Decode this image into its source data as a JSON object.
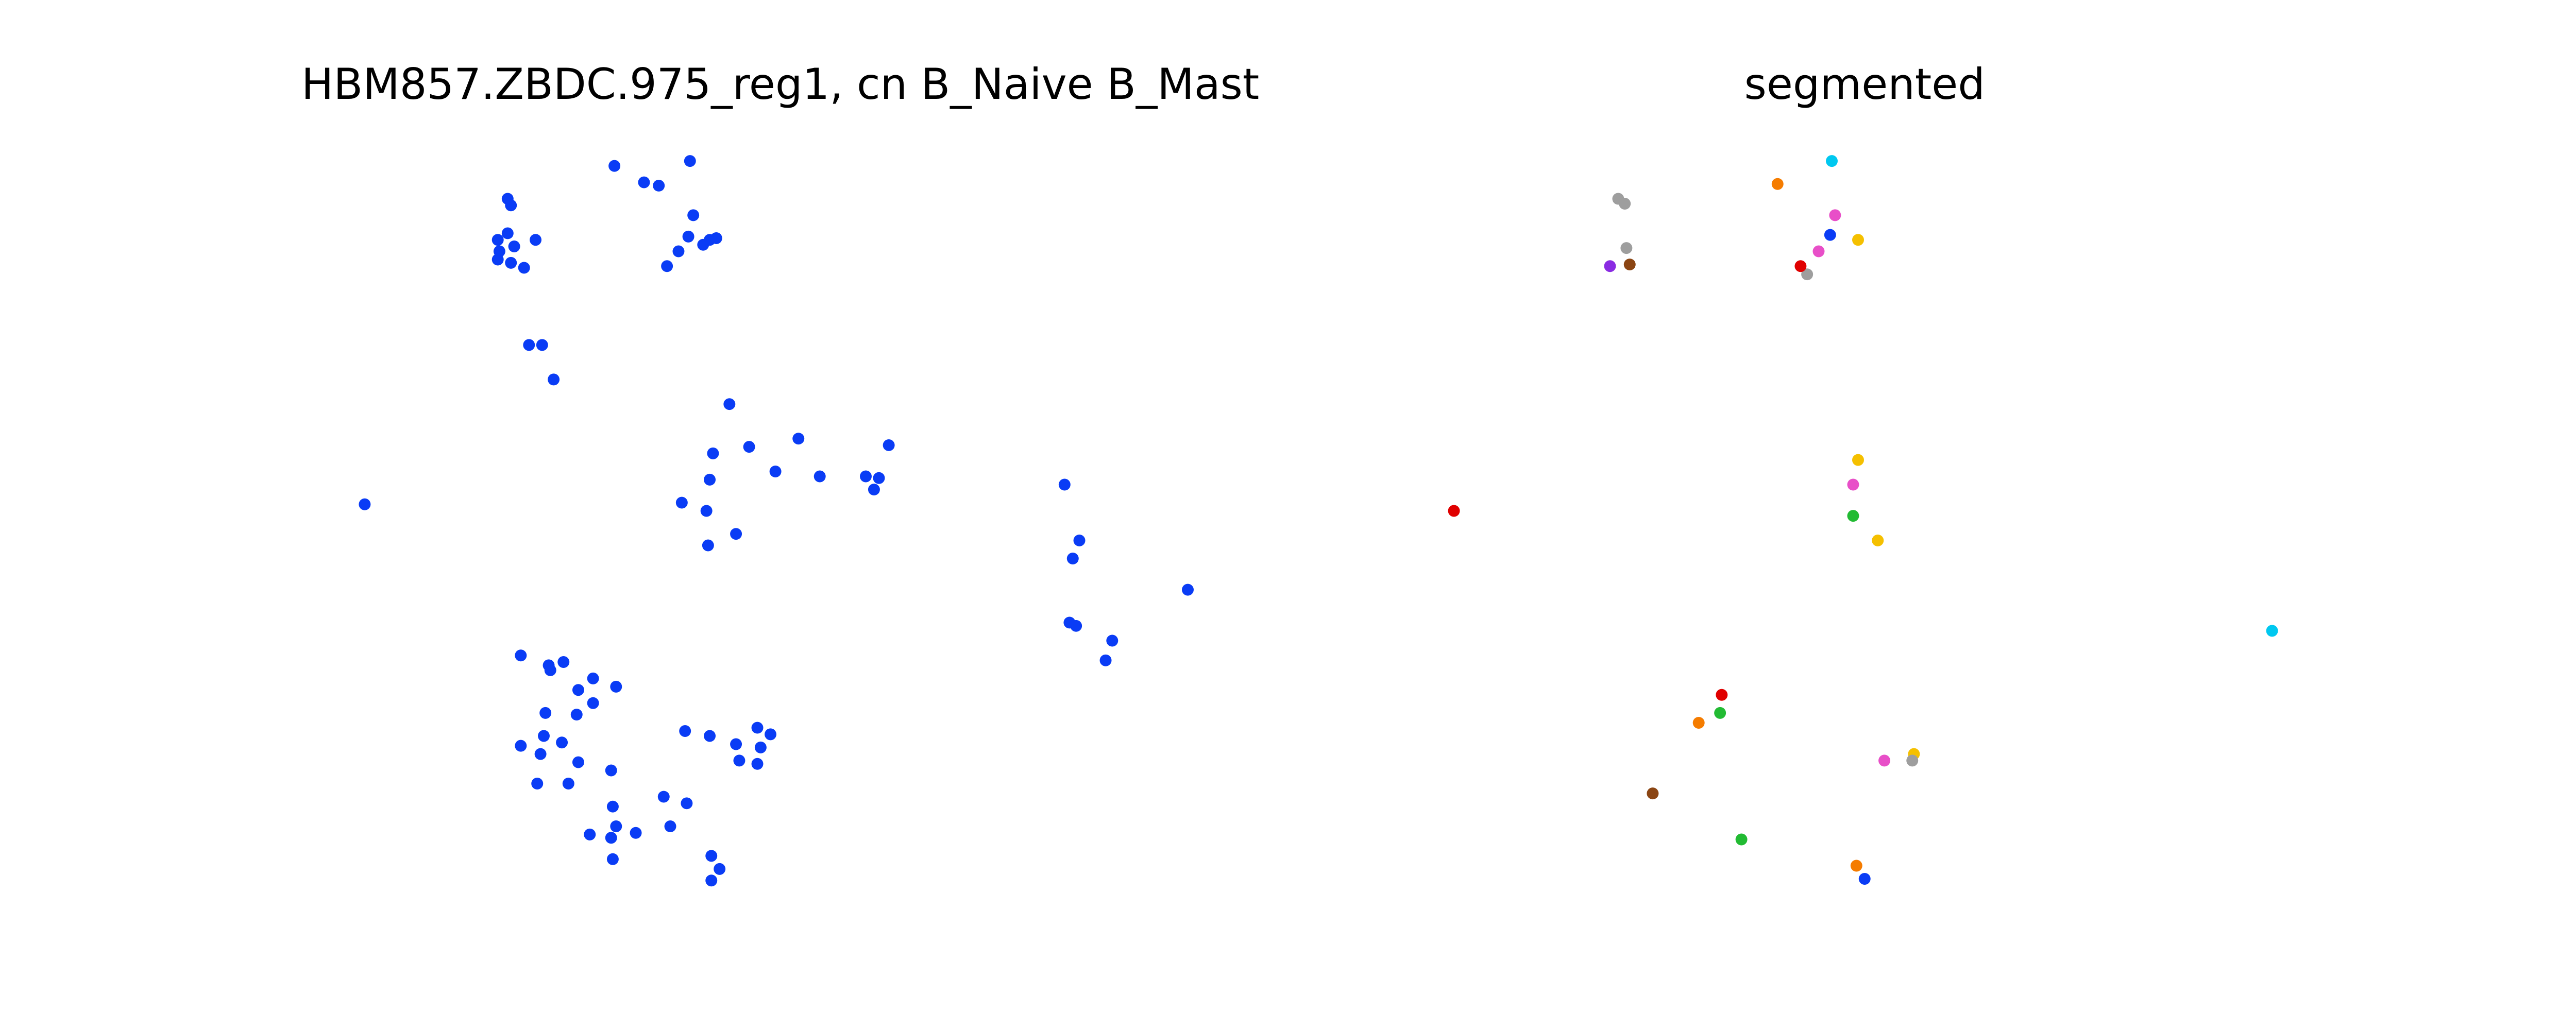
{
  "chart_data": [
    {
      "type": "scatter",
      "title": "HBM857.ZBDC.975_reg1, cn B_Naive B_Mast",
      "color": "#0a3cf5",
      "xlim": [
        0,
        610
      ],
      "ylim": [
        0,
        480
      ],
      "x": [
        139,
        141,
        133,
        139,
        143,
        156,
        133,
        141,
        149,
        134,
        204,
        222,
        231,
        250,
        252,
        249,
        243,
        236,
        262,
        266,
        258,
        152,
        160,
        167,
        274,
        264,
        286,
        316,
        302,
        329,
        357,
        365,
        371,
        362,
        262,
        245,
        260,
        278,
        261,
        52,
        478,
        487,
        483,
        481,
        485,
        507,
        503,
        553,
        147,
        164,
        173,
        165,
        182,
        191,
        191,
        205,
        181,
        162,
        147,
        161,
        159,
        172,
        182,
        202,
        157,
        176,
        203,
        234,
        248,
        238,
        189,
        205,
        202,
        203,
        217,
        247,
        262,
        278,
        280,
        291,
        299,
        293,
        291,
        263,
        268,
        263
      ],
      "y": [
        439,
        435,
        414,
        418,
        410,
        414,
        402,
        400,
        397,
        407,
        459,
        449,
        447,
        462,
        429,
        416,
        407,
        398,
        414,
        415,
        411,
        350,
        350,
        329,
        314,
        284,
        288,
        293,
        273,
        270,
        270,
        269,
        289,
        262,
        268,
        254,
        249,
        235,
        228,
        253,
        265,
        231,
        220,
        181,
        179,
        170,
        158,
        201,
        161,
        155,
        157,
        152,
        140,
        147,
        132,
        142,
        125,
        126,
        106,
        112,
        101,
        108,
        96,
        91,
        83,
        83,
        69,
        75,
        71,
        57,
        52,
        57,
        50,
        37,
        53,
        115,
        112,
        107,
        97,
        117,
        113,
        105,
        95,
        39,
        31,
        24
      ]
    },
    {
      "type": "scatter",
      "title": "segmented",
      "xlim": [
        0,
        550
      ],
      "ylim": [
        0,
        480
      ],
      "x": [
        125,
        129,
        130,
        240,
        222,
        174,
        270,
        255,
        523,
        257,
        247,
        268,
        287,
        254,
        275,
        271,
        271,
        283,
        305,
        236,
        25,
        188,
        120,
        132,
        146,
        268,
        187,
        200,
        304
      ],
      "y": [
        439,
        436,
        409,
        393,
        448,
        120,
        33,
        462,
        176,
        429,
        407,
        265,
        97,
        417,
        25,
        414,
        280,
        231,
        101,
        398,
        249,
        137,
        398,
        399,
        77,
        246,
        126,
        49,
        97
      ],
      "colors": [
        "#9e9e9e",
        "#9e9e9e",
        "#9e9e9e",
        "#9e9e9e",
        "#f57c00",
        "#f57c00",
        "#f57c00",
        "#00c8f0",
        "#00c8f0",
        "#e84fc8",
        "#e84fc8",
        "#e84fc8",
        "#e84fc8",
        "#0a3cf5",
        "#0a3cf5",
        "#f5c000",
        "#f5c000",
        "#f5c000",
        "#f5c000",
        "#e00000",
        "#e00000",
        "#e00000",
        "#8a2be2",
        "#8b4513",
        "#8b4513",
        "#22bb33",
        "#22bb33",
        "#22bb33",
        "#9e9e9e"
      ]
    }
  ]
}
